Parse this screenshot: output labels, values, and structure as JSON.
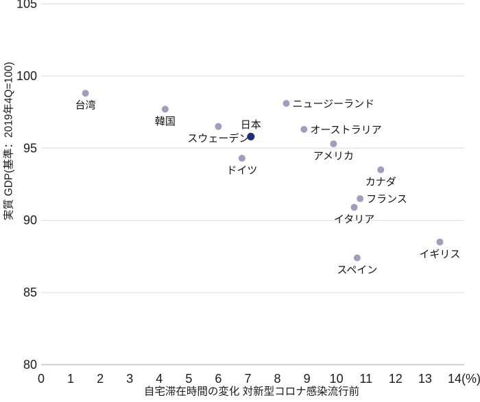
{
  "chart_data": {
    "type": "scatter",
    "title": "",
    "xlabel": "自宅滞在時間の変化 対新型コロナ感染流行前",
    "ylabel": "実質 GDP(基準：2019年4Q=100)",
    "xlim": [
      0,
      14
    ],
    "ylim": [
      80,
      105
    ],
    "x_ticks": [
      0,
      1,
      2,
      3,
      4,
      5,
      6,
      7,
      8,
      9,
      10,
      11,
      12,
      13,
      14
    ],
    "x_last_tick_label": "14(%)",
    "y_ticks": [
      80,
      85,
      90,
      95,
      100,
      105
    ],
    "grid": "horizontal",
    "legend_position": "none",
    "points": [
      {
        "label": "台湾",
        "x": 1.5,
        "y": 98.8,
        "label_pos": "below",
        "highlight": false
      },
      {
        "label": "韓国",
        "x": 4.2,
        "y": 97.7,
        "label_pos": "below",
        "highlight": false
      },
      {
        "label": "スウェーデン",
        "x": 6.0,
        "y": 96.5,
        "label_pos": "below",
        "highlight": false
      },
      {
        "label": "日本",
        "x": 7.1,
        "y": 95.8,
        "label_pos": "above",
        "highlight": true
      },
      {
        "label": "ドイツ",
        "x": 6.8,
        "y": 94.3,
        "label_pos": "below",
        "highlight": false
      },
      {
        "label": "ニュージーランド",
        "x": 8.3,
        "y": 98.1,
        "label_pos": "right",
        "highlight": false
      },
      {
        "label": "オーストラリア",
        "x": 8.9,
        "y": 96.3,
        "label_pos": "right",
        "highlight": false
      },
      {
        "label": "アメリカ",
        "x": 9.9,
        "y": 95.3,
        "label_pos": "below",
        "highlight": false
      },
      {
        "label": "カナダ",
        "x": 11.5,
        "y": 93.5,
        "label_pos": "below",
        "highlight": false
      },
      {
        "label": "フランス",
        "x": 10.8,
        "y": 91.5,
        "label_pos": "right",
        "highlight": false
      },
      {
        "label": "イタリア",
        "x": 10.6,
        "y": 90.9,
        "label_pos": "below",
        "highlight": false
      },
      {
        "label": "スペイン",
        "x": 10.7,
        "y": 87.4,
        "label_pos": "below",
        "highlight": false
      },
      {
        "label": "イギリス",
        "x": 13.5,
        "y": 88.5,
        "label_pos": "below",
        "highlight": false
      }
    ],
    "colors": {
      "dot": "#a29dc0",
      "dot_highlight": "#1e2d7d",
      "gridline": "#e6e6e6",
      "axis_line": "#c4c4c4",
      "tick_text": "#1a1a1a",
      "label_text": "#111111",
      "background": "#ffffff"
    }
  }
}
